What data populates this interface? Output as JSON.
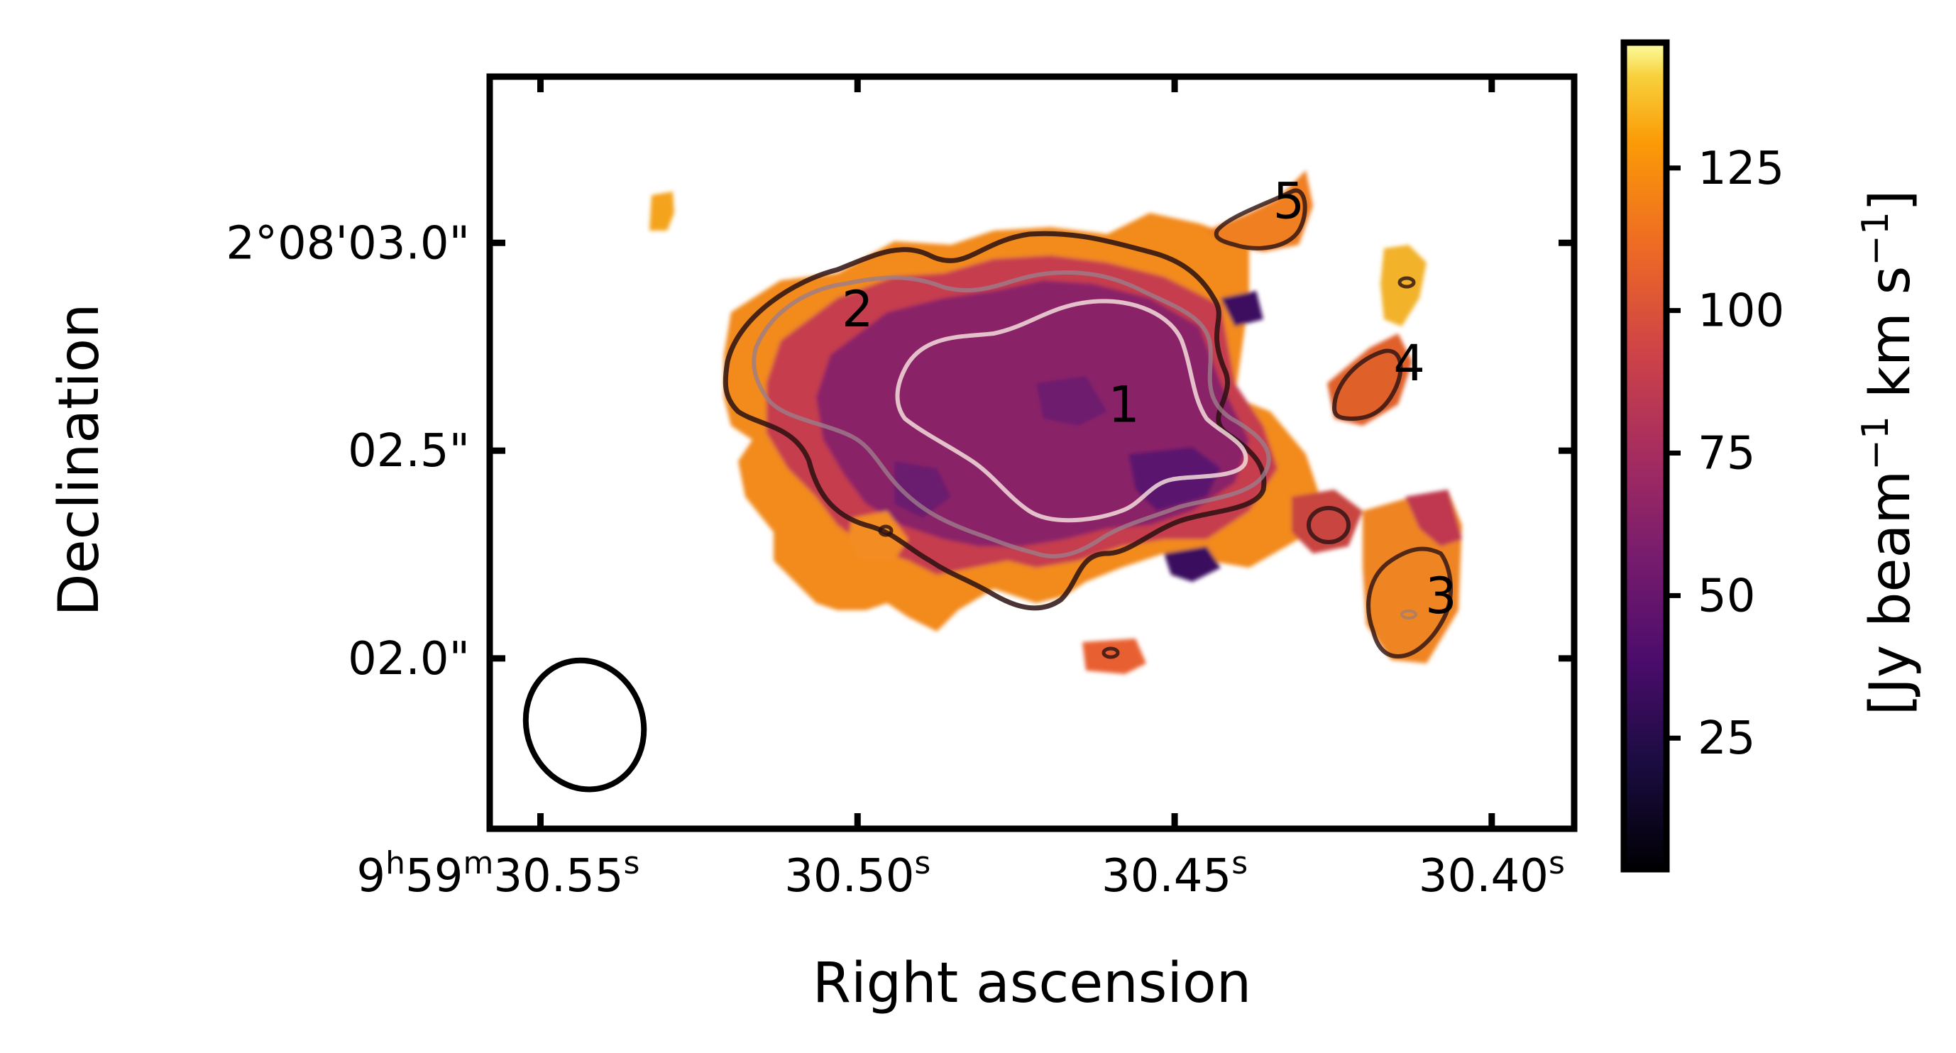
{
  "chart_data": {
    "type": "heatmap",
    "title": "",
    "xlabel": "Right ascension",
    "ylabel": "Declination",
    "x_ticks": [
      {
        "value": 30.55,
        "label": "9h59m30.55s"
      },
      {
        "value": 30.5,
        "label": "30.50s"
      },
      {
        "value": 30.45,
        "label": "30.45s"
      },
      {
        "value": 30.4,
        "label": "30.40s"
      }
    ],
    "x_tick_parts": [
      [
        {
          "t": "9"
        },
        {
          "t": "h",
          "sup": true
        },
        {
          "t": "59"
        },
        {
          "t": "m",
          "sup": true
        },
        {
          "t": "30.55"
        },
        {
          "t": "s",
          "sup": true
        }
      ],
      [
        {
          "t": "30.50"
        },
        {
          "t": "s",
          "sup": true
        }
      ],
      [
        {
          "t": "30.45"
        },
        {
          "t": "s",
          "sup": true
        }
      ],
      [
        {
          "t": "30.40"
        },
        {
          "t": "s",
          "sup": true
        }
      ]
    ],
    "xlim": [
      30.558,
      30.387
    ],
    "y_ticks": [
      {
        "value": 3.0,
        "label": "2°08'03.0\""
      },
      {
        "value": 2.5,
        "label": "02.5\""
      },
      {
        "value": 2.0,
        "label": "02.0\""
      }
    ],
    "ylim": [
      1.59,
      3.4
    ],
    "colorbar": {
      "label": "[Jy beam−1 km s−1]",
      "label_parts": [
        {
          "t": "[Jy beam"
        },
        {
          "t": "−1",
          "sup": true
        },
        {
          "t": " km s"
        },
        {
          "t": "−1",
          "sup": true
        },
        {
          "t": "]"
        }
      ],
      "ticks": [
        25,
        50,
        75,
        100,
        125
      ],
      "range": [
        2,
        147
      ],
      "colormap": "inferno"
    },
    "region_labels": [
      {
        "text": "1",
        "x": 30.458,
        "y": 2.61
      },
      {
        "text": "2",
        "x": 30.5,
        "y": 2.84
      },
      {
        "text": "3",
        "x": 30.408,
        "y": 2.15
      },
      {
        "text": "4",
        "x": 30.413,
        "y": 2.71
      },
      {
        "text": "5",
        "x": 30.432,
        "y": 3.1
      }
    ],
    "beam": {
      "ra": 30.543,
      "dec": 1.84,
      "major_arcsec": 0.3,
      "minor_arcsec": 0.25
    }
  }
}
